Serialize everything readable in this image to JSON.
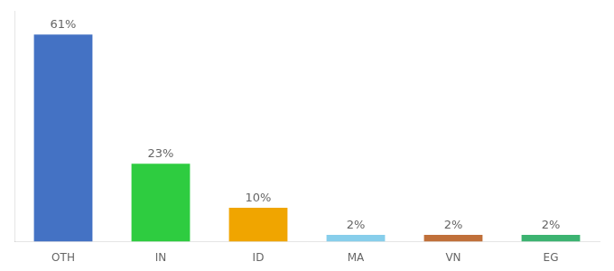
{
  "chart_data": {
    "type": "bar",
    "categories": [
      "OTH",
      "IN",
      "ID",
      "MA",
      "VN",
      "EG"
    ],
    "values": [
      61,
      23,
      10,
      2,
      2,
      2
    ],
    "colors": [
      "#4472c4",
      "#2ecc40",
      "#f0a500",
      "#87ceeb",
      "#c0703a",
      "#3cb371"
    ],
    "ylim": [
      0,
      68
    ],
    "yticks": [],
    "grid": false,
    "data_labels": true,
    "value_labels": [
      "61%",
      "23%",
      "10%",
      "2%",
      "2%",
      "2%"
    ],
    "tick_labels": "x"
  }
}
